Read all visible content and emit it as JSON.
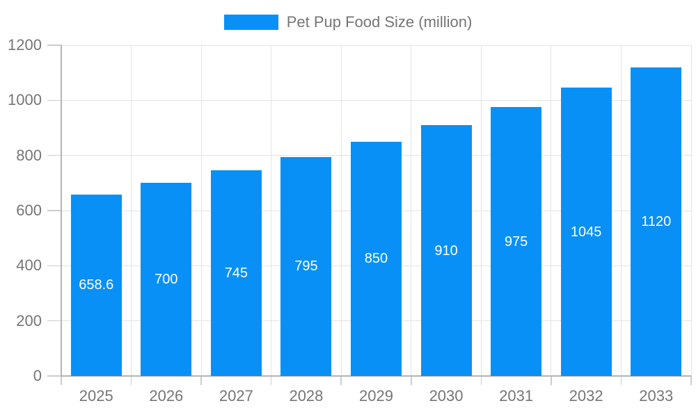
{
  "chart_data": {
    "type": "bar",
    "title": "Pet Pup Food Size (million)",
    "categories": [
      "2025",
      "2026",
      "2027",
      "2028",
      "2029",
      "2030",
      "2031",
      "2032",
      "2033"
    ],
    "values": [
      658.6,
      700,
      745,
      795,
      850,
      910,
      975,
      1045,
      1120
    ],
    "bar_value_labels": [
      "658.6",
      "700",
      "745",
      "795",
      "850",
      "910",
      "975",
      "1045",
      "1120"
    ],
    "xlabel": "",
    "ylabel": "",
    "ylim": [
      0,
      1200
    ],
    "yticks": [
      0,
      200,
      400,
      600,
      800,
      1000,
      1200
    ],
    "grid": true,
    "legend": {
      "position": "top-center",
      "label": "Pet Pup Food Size (million)"
    },
    "colors": {
      "bar": "#0990f6",
      "bar_value_text": "#ffffff",
      "axis": "#b3b3b3",
      "gridline": "#e3e3e3",
      "tick_mark": "#cccccc",
      "tick_text": "#757575",
      "legend_text": "#757575",
      "background": "#ffffff"
    }
  }
}
